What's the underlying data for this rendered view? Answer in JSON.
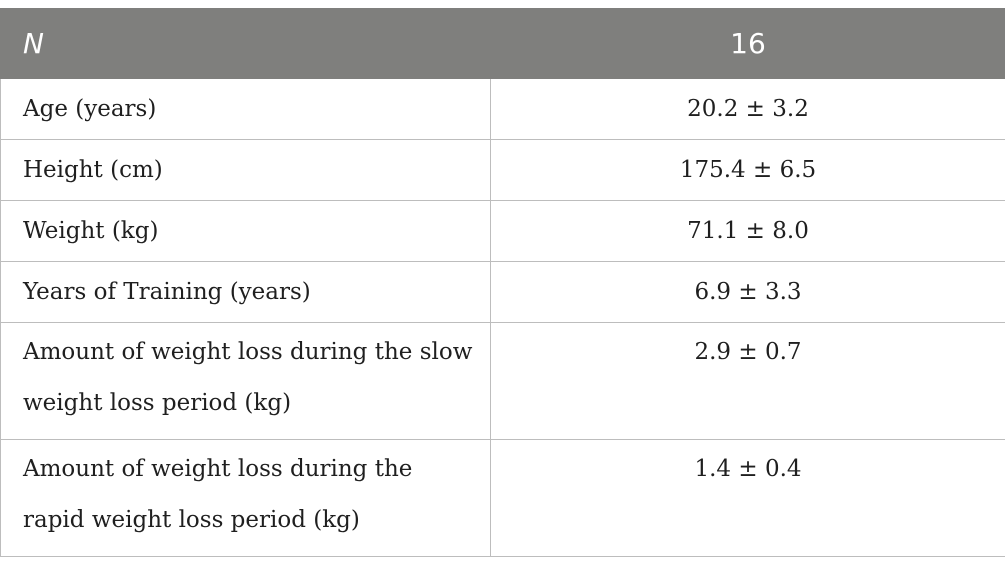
{
  "table": {
    "header": {
      "left": "N",
      "right": "16"
    },
    "rows": [
      {
        "label": "Age (years)",
        "value": "20.2 ± 3.2"
      },
      {
        "label": "Height (cm)",
        "value": "175.4 ± 6.5"
      },
      {
        "label": "Weight (kg)",
        "value": "71.1 ± 8.0"
      },
      {
        "label": "Years of Training (years)",
        "value": "6.9 ± 3.3"
      },
      {
        "label": "Amount of weight loss during the slow weight loss period (kg)",
        "value": "2.9 ± 0.7"
      },
      {
        "label": "Amount of weight loss during the rapid weight loss period (kg)",
        "value": "1.4 ± 0.4"
      }
    ],
    "colors": {
      "header_bg": "#7f7f7d",
      "header_text": "#ffffff",
      "border": "#bdbdbd",
      "body_text": "#1f1f1f"
    }
  }
}
